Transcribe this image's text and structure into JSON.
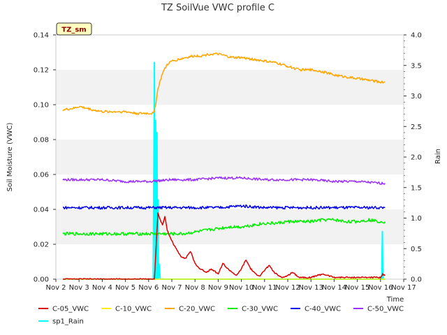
{
  "chart_data": {
    "type": "line",
    "title": "TZ SoilVue VWC profile C",
    "badge": "TZ_sm",
    "xlabel": "Time",
    "ylabel_left": "Soil Moisture (VWC)",
    "ylabel_right": "Rain",
    "xlim": [
      2,
      17
    ],
    "ylim_left": [
      0.0,
      0.14
    ],
    "ylim_right": [
      0.0,
      4.0
    ],
    "x_ticks": [
      2,
      3,
      4,
      5,
      6,
      7,
      8,
      9,
      10,
      11,
      12,
      13,
      14,
      15,
      16,
      17
    ],
    "x_tick_labels": [
      "Nov 2",
      "Nov 3",
      "Nov 4",
      "Nov 5",
      "Nov 6",
      "Nov 7",
      "Nov 8",
      "Nov 9",
      "Nov 10",
      "Nov 11",
      "Nov 12",
      "Nov 13",
      "Nov 14",
      "Nov 15",
      "Nov 16",
      "Nov 17"
    ],
    "y_left_ticks": [
      0.0,
      0.02,
      0.04,
      0.06,
      0.08,
      0.1,
      0.12,
      0.14
    ],
    "y_left_tick_labels": [
      "0.00",
      "0.02",
      "0.04",
      "0.06",
      "0.08",
      "0.10",
      "0.12",
      "0.14"
    ],
    "y_right_ticks": [
      0.0,
      0.5,
      1.0,
      1.5,
      2.0,
      2.5,
      3.0,
      3.5,
      4.0
    ],
    "y_right_tick_labels": [
      "0.0",
      "0.5",
      "1.0",
      "1.5",
      "2.0",
      "2.5",
      "3.0",
      "3.5",
      "4.0"
    ],
    "grid": "horizontal bands",
    "legend_position": "bottom",
    "series": [
      {
        "name": "C-05_VWC",
        "color": "#dd0000",
        "axis": "left",
        "x": [
          2.3,
          2.8,
          3.0,
          4.0,
          5.0,
          6.0,
          6.25,
          6.4,
          6.5,
          6.6,
          6.7,
          6.8,
          7.0,
          7.2,
          7.4,
          7.6,
          7.8,
          8.0,
          8.2,
          8.5,
          8.7,
          9.0,
          9.2,
          9.4,
          9.6,
          9.8,
          10.0,
          10.2,
          10.4,
          10.6,
          10.8,
          11.0,
          11.2,
          11.4,
          11.6,
          11.8,
          12.0,
          12.2,
          12.5,
          13.0,
          13.5,
          14.0,
          14.5,
          15.0,
          15.5,
          16.0,
          16.1,
          16.2
        ],
        "y": [
          0.0,
          0.0,
          0.0,
          0.0,
          0.0,
          0.0,
          0.0,
          0.038,
          0.034,
          0.031,
          0.036,
          0.028,
          0.022,
          0.017,
          0.013,
          0.012,
          0.016,
          0.009,
          0.006,
          0.004,
          0.006,
          0.003,
          0.009,
          0.006,
          0.004,
          0.002,
          0.006,
          0.011,
          0.006,
          0.003,
          0.002,
          0.005,
          0.008,
          0.004,
          0.002,
          0.001,
          0.002,
          0.004,
          0.001,
          0.001,
          0.003,
          0.001,
          0.001,
          0.001,
          0.001,
          0.001,
          0.003,
          0.002
        ]
      },
      {
        "name": "C-10_VWC",
        "color": "#ffee00",
        "axis": "left",
        "x": [
          2.3,
          16.2
        ],
        "y": [
          0.0,
          0.0
        ]
      },
      {
        "name": "C-20_VWC",
        "color": "#ffa500",
        "axis": "left",
        "x": [
          2.3,
          2.8,
          3.0,
          3.3,
          3.6,
          4.0,
          4.5,
          5.0,
          5.5,
          5.9,
          6.2,
          6.3,
          6.4,
          6.6,
          6.8,
          7.0,
          7.3,
          7.6,
          8.0,
          8.3,
          8.6,
          9.0,
          9.3,
          9.6,
          10.0,
          10.5,
          11.0,
          11.5,
          12.0,
          12.5,
          13.0,
          13.5,
          14.0,
          14.5,
          15.0,
          15.5,
          16.0,
          16.2
        ],
        "y": [
          0.097,
          0.098,
          0.099,
          0.098,
          0.097,
          0.096,
          0.096,
          0.096,
          0.095,
          0.095,
          0.095,
          0.1,
          0.109,
          0.118,
          0.123,
          0.125,
          0.126,
          0.127,
          0.128,
          0.128,
          0.129,
          0.129,
          0.128,
          0.127,
          0.127,
          0.126,
          0.125,
          0.124,
          0.122,
          0.12,
          0.12,
          0.119,
          0.117,
          0.116,
          0.115,
          0.114,
          0.113,
          0.113
        ]
      },
      {
        "name": "C-30_VWC",
        "color": "#00ee00",
        "axis": "left",
        "x": [
          2.3,
          3.0,
          4.0,
          5.0,
          6.0,
          6.5,
          6.8,
          7.0,
          7.5,
          8.0,
          8.5,
          9.0,
          9.5,
          10.0,
          10.5,
          11.0,
          11.5,
          12.0,
          12.5,
          13.0,
          13.5,
          14.0,
          14.5,
          15.0,
          15.5,
          16.0,
          16.2
        ],
        "y": [
          0.026,
          0.026,
          0.026,
          0.026,
          0.026,
          0.026,
          0.026,
          0.026,
          0.026,
          0.027,
          0.028,
          0.029,
          0.03,
          0.03,
          0.031,
          0.032,
          0.032,
          0.033,
          0.033,
          0.033,
          0.034,
          0.034,
          0.033,
          0.033,
          0.034,
          0.033,
          0.033
        ]
      },
      {
        "name": "C-40_VWC",
        "color": "#0000ee",
        "axis": "left",
        "x": [
          2.3,
          3.0,
          4.0,
          5.0,
          6.0,
          7.0,
          8.0,
          9.0,
          10.0,
          11.0,
          12.0,
          13.0,
          14.0,
          15.0,
          16.0,
          16.2
        ],
        "y": [
          0.041,
          0.041,
          0.041,
          0.041,
          0.041,
          0.041,
          0.041,
          0.041,
          0.042,
          0.041,
          0.041,
          0.041,
          0.041,
          0.041,
          0.041,
          0.041
        ]
      },
      {
        "name": "C-50_VWC",
        "color": "#9b30ff",
        "axis": "left",
        "x": [
          2.3,
          3.0,
          4.0,
          5.0,
          6.0,
          7.0,
          8.0,
          9.0,
          10.0,
          11.0,
          12.0,
          13.0,
          14.0,
          15.0,
          16.0,
          16.2
        ],
        "y": [
          0.057,
          0.057,
          0.057,
          0.056,
          0.056,
          0.057,
          0.057,
          0.058,
          0.058,
          0.057,
          0.057,
          0.057,
          0.056,
          0.056,
          0.055,
          0.055
        ]
      },
      {
        "name": "sp1_Rain",
        "color": "#00ffff",
        "axis": "right",
        "x": [
          2.3,
          6.2,
          6.25,
          6.28,
          6.3,
          6.33,
          6.36,
          6.38,
          6.4,
          6.42,
          6.45,
          6.5,
          16.0,
          16.05,
          16.08,
          16.1,
          16.15,
          16.2
        ],
        "y": [
          0.0,
          0.0,
          3.55,
          0.0,
          2.6,
          0.0,
          2.4,
          0.0,
          1.3,
          0.0,
          0.25,
          0.0,
          0.0,
          0.0,
          0.78,
          0.0,
          0.0,
          0.0
        ]
      }
    ]
  }
}
